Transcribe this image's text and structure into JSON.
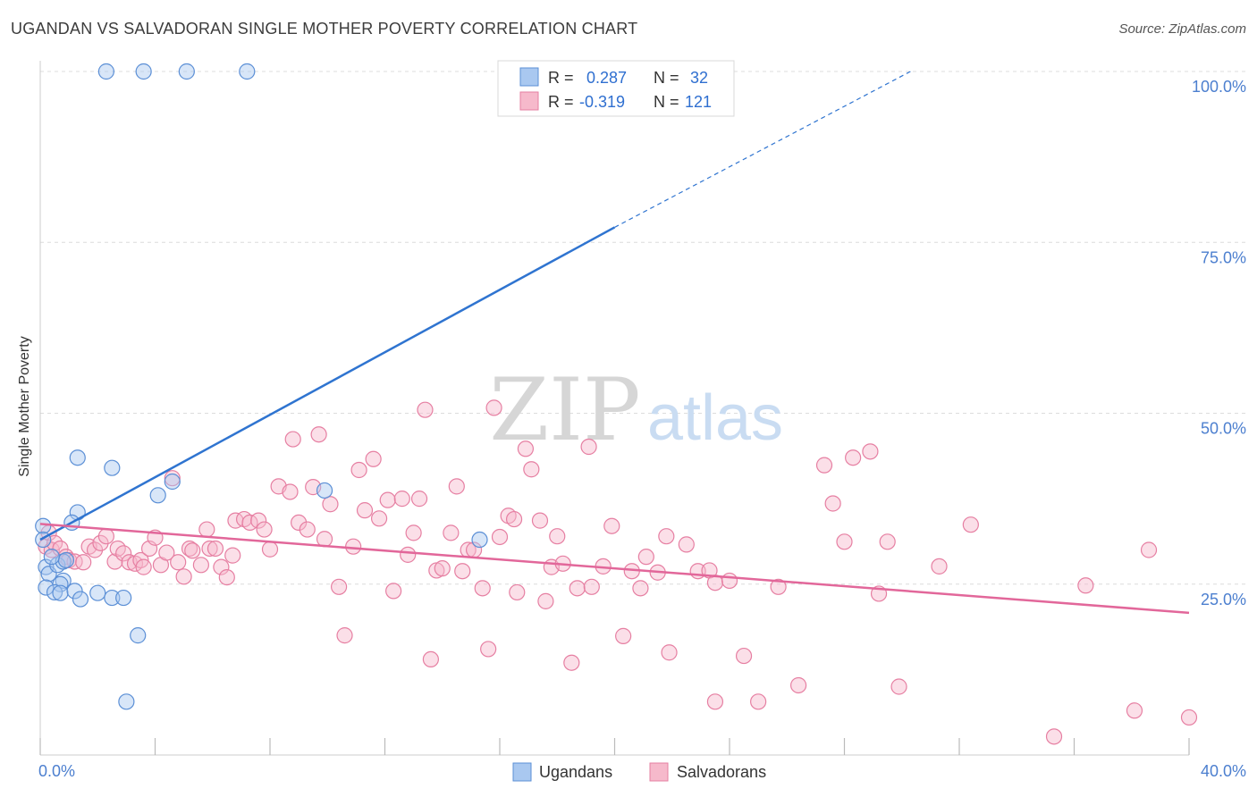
{
  "title": "UGANDAN VS SALVADORAN SINGLE MOTHER POVERTY CORRELATION CHART",
  "source": "Source: ZipAtlas.com",
  "watermark": {
    "zip": "ZIP",
    "atlas": "atlas"
  },
  "colors": {
    "ugandans_fill": "#a9c8f0",
    "ugandans_stroke": "#5b8fd6",
    "ugandans_line": "#2f74d0",
    "salvadorans_fill": "#f6b9cb",
    "salvadorans_stroke": "#e67fa2",
    "salvadorans_line": "#e2679a",
    "axis_text": "#4c7fcf",
    "grid": "#dcdcdc"
  },
  "legend": {
    "rows": [
      {
        "r_label": "R =",
        "r_value": "0.287",
        "n_label": "N =",
        "n_value": "32"
      },
      {
        "r_label": "R =",
        "r_value": "-0.319",
        "n_label": "N =",
        "n_value": "121"
      }
    ]
  },
  "chart_data": {
    "type": "scatter",
    "title": "UGANDAN VS SALVADORAN SINGLE MOTHER POVERTY CORRELATION CHART",
    "xlabel": "",
    "ylabel": "Single Mother Poverty",
    "xlim": [
      0,
      40
    ],
    "ylim": [
      0,
      100
    ],
    "x_tick_labels": [
      "0.0%",
      "40.0%"
    ],
    "y_ticks": [
      25,
      50,
      75,
      100
    ],
    "y_tick_labels": [
      "25.0%",
      "50.0%",
      "75.0%",
      "100.0%"
    ],
    "grid": true,
    "legend_position": "bottom",
    "series": [
      {
        "name": "Ugandans",
        "trend": {
          "x0": 0,
          "y0": 31.5,
          "x1": 20,
          "y1": 77.2,
          "dash_to_x": 30.3,
          "dash_to_y": 100
        },
        "points": [
          [
            2.3,
            100
          ],
          [
            3.6,
            100
          ],
          [
            5.1,
            100
          ],
          [
            7.2,
            100
          ],
          [
            1.3,
            43.5
          ],
          [
            2.5,
            42
          ],
          [
            4.6,
            40
          ],
          [
            4.1,
            38
          ],
          [
            9.9,
            38.7
          ],
          [
            0.1,
            33.5
          ],
          [
            1.3,
            35.5
          ],
          [
            1.1,
            34
          ],
          [
            0.2,
            27.5
          ],
          [
            0.3,
            26.5
          ],
          [
            0.6,
            27.8
          ],
          [
            0.8,
            28.3
          ],
          [
            0.9,
            28.5
          ],
          [
            0.8,
            25.5
          ],
          [
            0.7,
            25
          ],
          [
            0.2,
            24.5
          ],
          [
            0.5,
            23.8
          ],
          [
            0.7,
            23.7
          ],
          [
            1.2,
            24
          ],
          [
            1.4,
            22.8
          ],
          [
            2.0,
            23.7
          ],
          [
            2.5,
            23
          ],
          [
            2.9,
            23
          ],
          [
            3.4,
            17.5
          ],
          [
            3.0,
            7.8
          ],
          [
            15.3,
            31.5
          ],
          [
            0.1,
            31.5
          ],
          [
            0.4,
            29
          ]
        ]
      },
      {
        "name": "Salvadorans",
        "trend": {
          "x0": 0,
          "y0": 33.8,
          "x1": 40,
          "y1": 20.8
        },
        "points": [
          [
            0.2,
            30.5
          ],
          [
            0.3,
            32.5
          ],
          [
            0.4,
            30
          ],
          [
            0.5,
            31
          ],
          [
            0.7,
            30.2
          ],
          [
            0.9,
            29
          ],
          [
            1.0,
            28.5
          ],
          [
            1.2,
            28.3
          ],
          [
            1.5,
            28.2
          ],
          [
            1.7,
            30.5
          ],
          [
            1.9,
            30
          ],
          [
            2.1,
            31
          ],
          [
            2.3,
            32
          ],
          [
            2.6,
            28.3
          ],
          [
            2.7,
            30.2
          ],
          [
            2.9,
            29.5
          ],
          [
            3.1,
            28.2
          ],
          [
            3.3,
            28
          ],
          [
            3.5,
            28.5
          ],
          [
            3.6,
            27.5
          ],
          [
            3.8,
            30.2
          ],
          [
            4.0,
            31.8
          ],
          [
            4.2,
            27.8
          ],
          [
            4.4,
            29.6
          ],
          [
            4.6,
            40.5
          ],
          [
            4.8,
            28.2
          ],
          [
            5.0,
            26.1
          ],
          [
            5.2,
            30.2
          ],
          [
            5.3,
            29.9
          ],
          [
            5.6,
            27.8
          ],
          [
            5.8,
            33
          ],
          [
            5.9,
            30.2
          ],
          [
            6.1,
            30.2
          ],
          [
            6.3,
            27.5
          ],
          [
            6.5,
            26
          ],
          [
            6.7,
            29.2
          ],
          [
            6.8,
            34.3
          ],
          [
            7.1,
            34.5
          ],
          [
            7.3,
            34
          ],
          [
            7.6,
            34.3
          ],
          [
            7.8,
            33
          ],
          [
            8.0,
            30.1
          ],
          [
            8.3,
            39.3
          ],
          [
            8.7,
            38.5
          ],
          [
            8.8,
            46.2
          ],
          [
            9.0,
            34
          ],
          [
            9.3,
            33
          ],
          [
            9.5,
            39.2
          ],
          [
            9.7,
            46.9
          ],
          [
            9.9,
            31.6
          ],
          [
            10.1,
            36.7
          ],
          [
            10.4,
            24.6
          ],
          [
            10.6,
            17.5
          ],
          [
            10.9,
            30.5
          ],
          [
            11.1,
            41.7
          ],
          [
            11.3,
            35.8
          ],
          [
            11.6,
            43.3
          ],
          [
            11.8,
            34.6
          ],
          [
            12.1,
            37.3
          ],
          [
            12.3,
            24
          ],
          [
            12.6,
            37.5
          ],
          [
            12.8,
            29.3
          ],
          [
            13.0,
            32.5
          ],
          [
            13.2,
            37.5
          ],
          [
            13.4,
            50.5
          ],
          [
            13.6,
            14
          ],
          [
            13.8,
            27
          ],
          [
            14.0,
            27.3
          ],
          [
            14.3,
            32.5
          ],
          [
            14.5,
            39.3
          ],
          [
            14.7,
            26.9
          ],
          [
            14.9,
            30
          ],
          [
            15.1,
            30
          ],
          [
            15.4,
            24.4
          ],
          [
            15.6,
            15.5
          ],
          [
            15.8,
            50.8
          ],
          [
            16.0,
            31.9
          ],
          [
            16.3,
            35
          ],
          [
            16.5,
            34.5
          ],
          [
            16.6,
            23.8
          ],
          [
            16.9,
            44.8
          ],
          [
            17.1,
            41.8
          ],
          [
            17.4,
            34.3
          ],
          [
            17.6,
            22.5
          ],
          [
            17.8,
            27.5
          ],
          [
            18.0,
            32
          ],
          [
            18.2,
            28
          ],
          [
            18.5,
            13.5
          ],
          [
            18.7,
            24.4
          ],
          [
            19.1,
            45.1
          ],
          [
            19.2,
            24.6
          ],
          [
            19.6,
            27.6
          ],
          [
            19.9,
            33.5
          ],
          [
            20.3,
            17.4
          ],
          [
            20.6,
            26.9
          ],
          [
            20.9,
            24.4
          ],
          [
            21.1,
            29
          ],
          [
            21.5,
            26.7
          ],
          [
            21.8,
            32
          ],
          [
            21.9,
            15
          ],
          [
            22.5,
            30.8
          ],
          [
            22.9,
            26.9
          ],
          [
            23.3,
            27
          ],
          [
            23.5,
            25.2
          ],
          [
            23.5,
            7.8
          ],
          [
            24.0,
            25.5
          ],
          [
            24.5,
            14.5
          ],
          [
            25.0,
            7.8
          ],
          [
            25.7,
            24.6
          ],
          [
            26.4,
            10.2
          ],
          [
            27.3,
            42.4
          ],
          [
            27.6,
            36.8
          ],
          [
            28.0,
            31.2
          ],
          [
            28.3,
            43.5
          ],
          [
            28.9,
            44.4
          ],
          [
            29.2,
            23.6
          ],
          [
            29.5,
            31.2
          ],
          [
            29.9,
            10
          ],
          [
            31.3,
            27.6
          ],
          [
            32.4,
            33.7
          ],
          [
            35.3,
            2.7
          ],
          [
            36.4,
            24.8
          ],
          [
            38.1,
            6.5
          ],
          [
            38.6,
            30
          ],
          [
            40.0,
            5.5
          ]
        ]
      }
    ]
  },
  "bottom_legend": {
    "items": [
      "Ugandans",
      "Salvadorans"
    ]
  }
}
